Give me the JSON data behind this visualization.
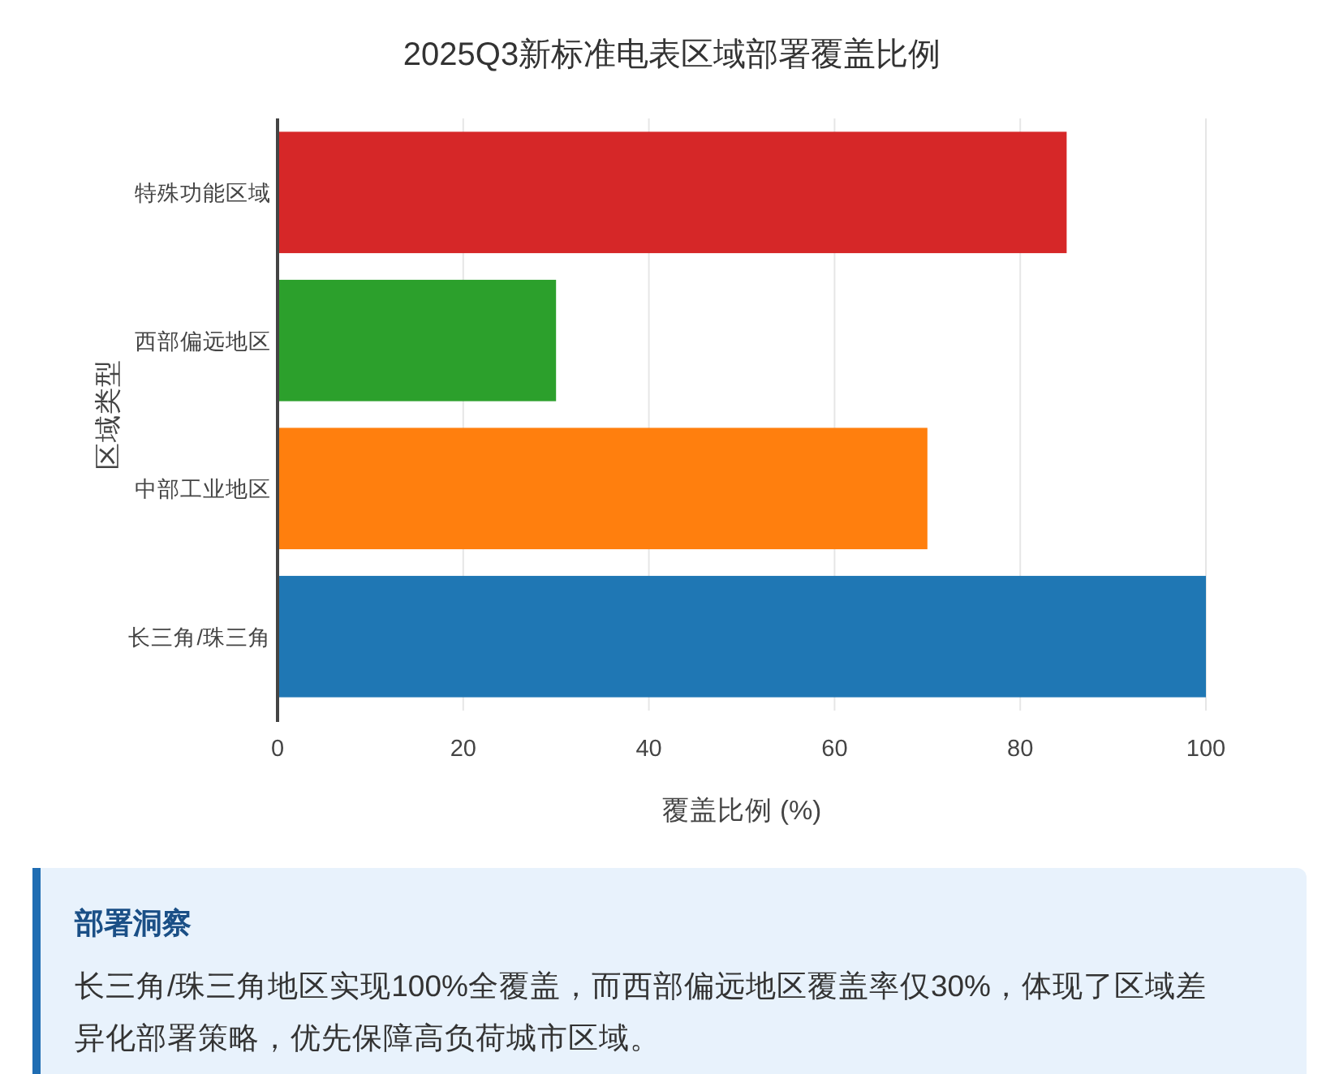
{
  "chart_data": {
    "type": "bar",
    "orientation": "horizontal",
    "title": "2025Q3新标准电表区域部署覆盖比例",
    "xlabel": "覆盖比例 (%)",
    "ylabel": "区域类型",
    "categories": [
      "特殊功能区域",
      "西部偏远地区",
      "中部工业地区",
      "长三角/珠三角"
    ],
    "values": [
      85,
      30,
      70,
      100
    ],
    "colors": [
      "#d62728",
      "#2ca02c",
      "#ff7f0e",
      "#1f77b4"
    ],
    "xlim": [
      0,
      100
    ],
    "xticks": [
      0,
      20,
      40,
      60,
      80,
      100
    ],
    "grid": "x",
    "annotations": [
      "部署洞察",
      "长三角/珠三角地区实现100%全覆盖，而西部偏远地区覆盖率仅30%，体现了区域差异化部署策略，优先保障高负荷城市区域。"
    ]
  }
}
